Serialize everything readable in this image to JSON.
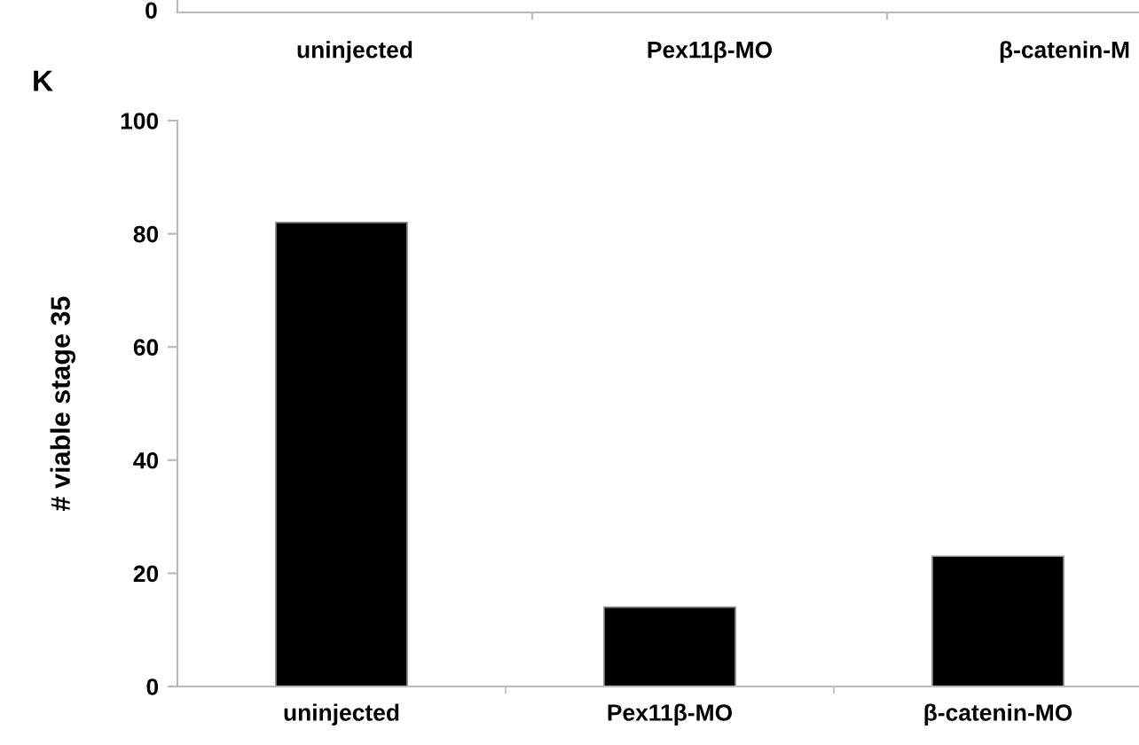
{
  "chart_data": [
    {
      "type": "other",
      "annotations": [
        "K",
        "0",
        "uninjected",
        "Pex11β-MO",
        "β-catenin-M"
      ]
    },
    {
      "type": "bar",
      "categories": [
        "uninjected",
        "Pex11β-MO",
        "β-catenin-MO"
      ],
      "values": [
        82,
        14,
        23
      ],
      "color": "#000000",
      "ylabel": "# viable stage 35",
      "ylim": [
        0,
        100
      ],
      "yticks": [
        0,
        20,
        40,
        60,
        80,
        100
      ],
      "grid": false
    }
  ]
}
